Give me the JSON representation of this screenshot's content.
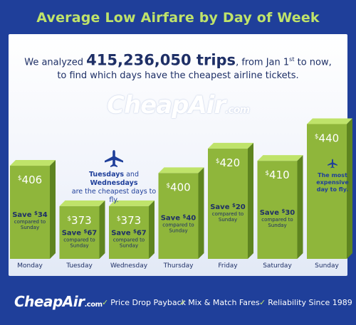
{
  "title": "Average Low Airfare by Day of Week",
  "headline": {
    "prefix": "We analyzed",
    "trips": "415,236,050 trips",
    "from": ", from Jan 1",
    "sup": "st",
    "to": " to now,",
    "line2": "to find which days have the cheapest airline tickets."
  },
  "watermark": {
    "text": "CheapAir",
    "domain": ".com"
  },
  "chart_data": {
    "type": "bar",
    "title": "Average Low Airfare by Day of Week",
    "categories": [
      "Monday",
      "Tuesday",
      "Wednesday",
      "Thursday",
      "Friday",
      "Saturday",
      "Sunday"
    ],
    "values": [
      406,
      373,
      373,
      400,
      420,
      410,
      440
    ],
    "savings": [
      {
        "label": "Save",
        "currency": "$",
        "amount": "34",
        "compared": "compared to",
        "ref": "Sunday"
      },
      {
        "label": "Save",
        "currency": "$",
        "amount": "67",
        "compared": "compared to",
        "ref": "Sunday"
      },
      {
        "label": "Save",
        "currency": "$",
        "amount": "67",
        "compared": "compared to",
        "ref": "Sunday"
      },
      {
        "label": "Save",
        "currency": "$",
        "amount": "40",
        "compared": "compared to",
        "ref": "Sunday"
      },
      {
        "label": "Save",
        "currency": "$",
        "amount": "20",
        "compared": "compared to",
        "ref": "Sunday"
      },
      {
        "label": "Save",
        "currency": "$",
        "amount": "30",
        "compared": "compared to",
        "ref": "Sunday"
      },
      null
    ],
    "currency": "$",
    "ylim": [
      330,
      460
    ],
    "colors": {
      "bar_front": "#8fb63b",
      "bar_top": "#bfe36a",
      "bar_side": "#5e8420"
    }
  },
  "callout": {
    "day1": "Tuesdays",
    "and": "and",
    "day2": "Wednesdays",
    "text": "are the cheapest days to fly.",
    "icon": "airplane-icon"
  },
  "expensive": {
    "line1": "The most",
    "line2": "expensive",
    "line3": "day to fly.",
    "icon": "airplane-icon"
  },
  "footer": {
    "logo": "CheapAir",
    "logo_domain": ".com",
    "features": [
      "Price Drop Payback",
      "Mix & Match Fares",
      "Reliability Since 1989"
    ]
  }
}
